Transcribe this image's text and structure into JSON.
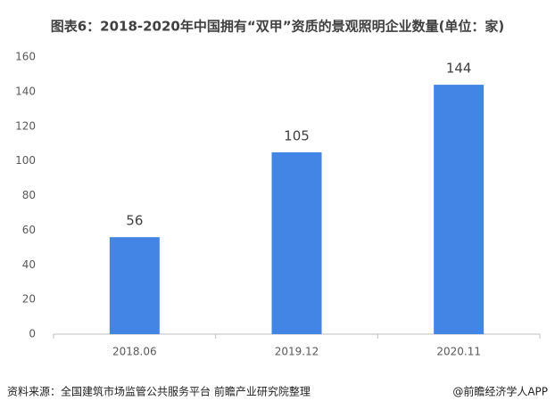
{
  "chart_data": {
    "type": "bar",
    "title": "图表6：2018-2020年中国拥有“双甲”资质的景观照明企业数量(单位：家)",
    "categories": [
      "2018.06",
      "2019.12",
      "2020.11"
    ],
    "values": [
      56,
      105,
      144
    ],
    "color": "#4285e4",
    "ylim": [
      0,
      160
    ],
    "yticks": [
      0,
      20,
      40,
      60,
      80,
      100,
      120,
      140,
      160
    ],
    "grid": false,
    "source": "资料来源：全国建筑市场监管公共服务平台 前瞻产业研究院整理",
    "credit": "@前瞻经济学人APP"
  }
}
